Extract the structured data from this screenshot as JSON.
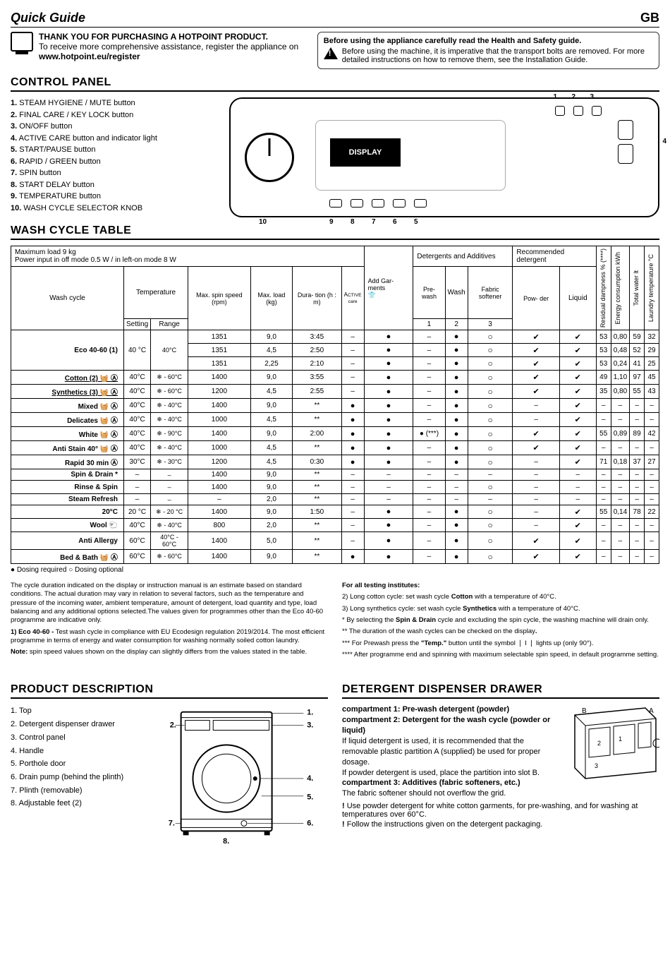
{
  "header": {
    "title": "Quick Guide",
    "locale": "GB"
  },
  "thank": {
    "title": "THANK YOU FOR PURCHASING A HOTPOINT PRODUCT.",
    "text": "To receive more comprehensive assistance, register the appliance on",
    "url": "www.hotpoint.eu/register"
  },
  "warning": {
    "title": "Before using the appliance carefully read the Health and Safety guide.",
    "body": "Before using the machine, it is imperative that the transport bolts are removed. For more detailed instructions on how to remove them, see the Installation Guide."
  },
  "controlPanel": {
    "heading": "CONTROL PANEL",
    "items": [
      "STEAM HYGIENE / MUTE button",
      "FINAL CARE / KEY LOCK button",
      "ON/OFF button",
      "ACTIVE CARE button and indicator light",
      "START/PAUSE button",
      "RAPID / GREEN button",
      "SPIN button",
      "START DELAY button",
      "TEMPERATURE button",
      "WASH CYCLE SELECTOR KNOB"
    ],
    "displayLabel": "DISPLAY"
  },
  "washTable": {
    "heading": "WASH CYCLE TABLE",
    "metaLine1": "Maximum load 9 kg",
    "metaLine2": "Power input in off mode 0.5 W / in left-on mode 8 W",
    "headers": {
      "washCycle": "Wash cycle",
      "temperature": "Temperature",
      "tempSetting": "Setting",
      "tempRange": "Range",
      "maxSpin": "Max. spin speed (rpm)",
      "maxLoad": "Max. load (kg)",
      "duration": "Dura-\ntion (h : m)",
      "active": "Active",
      "addGarments": "Add Gar-\nments",
      "detergentsAdditives": "Detergents and Additives",
      "prewash": "Pre-\nwash",
      "wash": "Wash",
      "fabricSoftener": "Fabric softener",
      "recommendedDetergent": "Recommended detergent",
      "powder": "Pow-\nder",
      "liquid": "Liquid",
      "one": "1",
      "two": "2",
      "three": "3",
      "residualDampness": "Residual dampness % (****)",
      "energyConsumption": "Energy consumption kWh",
      "totalWater": "Total water lt",
      "laundryTemp": "Laundry temperature  °C"
    },
    "rows": [
      {
        "cycle": "Eco 40-60 (1)",
        "t": "40 °C",
        "r": "40°C",
        "rpm": "1351",
        "load": "9,0",
        "dur": "3:45",
        "ac": "–",
        "ag": "f",
        "pw": "–",
        "w": "f",
        "fs": "o",
        "pd": "c",
        "lq": "c",
        "rd": "53",
        "ec": "0,80",
        "tw": "59",
        "lt": "32",
        "rowspan": 3,
        "sub": [
          {
            "rpm": "1351",
            "load": "4,5",
            "dur": "2:50",
            "ac": "–",
            "ag": "f",
            "pw": "–",
            "w": "f",
            "fs": "o",
            "pd": "c",
            "lq": "c",
            "rd": "53",
            "ec": "0,48",
            "tw": "52",
            "lt": "29"
          },
          {
            "rpm": "1351",
            "load": "2,25",
            "dur": "2:10",
            "ac": "–",
            "ag": "f",
            "pw": "–",
            "w": "f",
            "fs": "o",
            "pd": "c",
            "lq": "c",
            "rd": "53",
            "ec": "0,24",
            "tw": "41",
            "lt": "25"
          }
        ]
      },
      {
        "cycle": "Cotton (2)",
        "icons": "wash",
        "t": "40°C",
        "r": "❄ - 60°C",
        "rpm": "1400",
        "load": "9,0",
        "dur": "3:55",
        "ac": "–",
        "ag": "f",
        "pw": "–",
        "w": "f",
        "fs": "o",
        "pd": "c",
        "lq": "c",
        "rd": "49",
        "ec": "1,10",
        "tw": "97",
        "lt": "45",
        "underline": true
      },
      {
        "cycle": "Synthetics (3)",
        "icons": "wash",
        "t": "40°C",
        "r": "❄ - 60°C",
        "rpm": "1200",
        "load": "4,5",
        "dur": "2:55",
        "ac": "–",
        "ag": "f",
        "pw": "–",
        "w": "f",
        "fs": "o",
        "pd": "c",
        "lq": "c",
        "rd": "35",
        "ec": "0,80",
        "tw": "55",
        "lt": "43",
        "underline": true
      },
      {
        "cycle": "Mixed",
        "icons": "wash a",
        "t": "40°C",
        "r": "❄ - 40°C",
        "rpm": "1400",
        "load": "9,0",
        "dur": "**",
        "ac": "f",
        "ag": "f",
        "pw": "–",
        "w": "f",
        "fs": "o",
        "pd": "–",
        "lq": "c",
        "rd": "–",
        "ec": "–",
        "tw": "–",
        "lt": "–"
      },
      {
        "cycle": "Delicates",
        "icons": "wash a",
        "t": "40°C",
        "r": "❄ - 40°C",
        "rpm": "1000",
        "load": "4,5",
        "dur": "**",
        "ac": "f",
        "ag": "f",
        "pw": "–",
        "w": "f",
        "fs": "o",
        "pd": "–",
        "lq": "c",
        "rd": "–",
        "ec": "–",
        "tw": "–",
        "lt": "–"
      },
      {
        "cycle": "White",
        "icons": "wash a",
        "t": "40°C",
        "r": "❄ - 90°C",
        "rpm": "1400",
        "load": "9,0",
        "dur": "2:00",
        "ac": "f",
        "ag": "f",
        "pw": "● (***)",
        "w": "f",
        "fs": "o",
        "pd": "c",
        "lq": "c",
        "rd": "55",
        "ec": "0,89",
        "tw": "89",
        "lt": "42"
      },
      {
        "cycle": "Anti Stain 40°",
        "icons": "wash a",
        "t": "40°C",
        "r": "❄ - 40°C",
        "rpm": "1000",
        "load": "4,5",
        "dur": "**",
        "ac": "f",
        "ag": "f",
        "pw": "–",
        "w": "f",
        "fs": "o",
        "pd": "c",
        "lq": "c",
        "rd": "–",
        "ec": "–",
        "tw": "–",
        "lt": "–"
      },
      {
        "cycle": "Rapid 30 min",
        "icons": "a",
        "t": "30°C",
        "r": "❄ - 30°C",
        "rpm": "1200",
        "load": "4,5",
        "dur": "0:30",
        "ac": "f",
        "ag": "f",
        "pw": "–",
        "w": "f",
        "fs": "o",
        "pd": "–",
        "lq": "c",
        "rd": "71",
        "ec": "0,18",
        "tw": "37",
        "lt": "27"
      },
      {
        "cycle": "Spin & Drain *",
        "t": "–",
        "r": "–",
        "rpm": "1400",
        "load": "9,0",
        "dur": "**",
        "ac": "–",
        "ag": "–",
        "pw": "–",
        "w": "–",
        "fs": "–",
        "pd": "–",
        "lq": "–",
        "rd": "–",
        "ec": "–",
        "tw": "–",
        "lt": "–"
      },
      {
        "cycle": "Rinse & Spin",
        "t": "–",
        "r": "–",
        "rpm": "1400",
        "load": "9,0",
        "dur": "**",
        "ac": "–",
        "ag": "–",
        "pw": "–",
        "w": "–",
        "fs": "o",
        "pd": "–",
        "lq": "–",
        "rd": "–",
        "ec": "–",
        "tw": "–",
        "lt": "–"
      },
      {
        "cycle": "Steam Refresh",
        "t": "–",
        "r": "–",
        "rpm": "–",
        "load": "2,0",
        "dur": "**",
        "ac": "–",
        "ag": "–",
        "pw": "–",
        "w": "–",
        "fs": "–",
        "pd": "–",
        "lq": "–",
        "rd": "–",
        "ec": "–",
        "tw": "–",
        "lt": "–"
      },
      {
        "cycle": "20°C",
        "t": "20 °C",
        "r": "❄ - 20 °C",
        "rpm": "1400",
        "load": "9,0",
        "dur": "1:50",
        "ac": "–",
        "ag": "f",
        "pw": "–",
        "w": "f",
        "fs": "o",
        "pd": "–",
        "lq": "c",
        "rd": "55",
        "ec": "0,14",
        "tw": "78",
        "lt": "22"
      },
      {
        "cycle": "Wool",
        "icons": "wool",
        "t": "40°C",
        "r": "❄ - 40°C",
        "rpm": "800",
        "load": "2,0",
        "dur": "**",
        "ac": "–",
        "ag": "f",
        "pw": "–",
        "w": "f",
        "fs": "o",
        "pd": "–",
        "lq": "c",
        "rd": "–",
        "ec": "–",
        "tw": "–",
        "lt": "–"
      },
      {
        "cycle": "Anti Allergy",
        "t": "60°C",
        "r": "40°C - 60°C",
        "rpm": "1400",
        "load": "5,0",
        "dur": "**",
        "ac": "–",
        "ag": "f",
        "pw": "–",
        "w": "f",
        "fs": "o",
        "pd": "c",
        "lq": "c",
        "rd": "–",
        "ec": "–",
        "tw": "–",
        "lt": "–"
      },
      {
        "cycle": "Bed & Bath",
        "icons": "wash a",
        "t": "60°C",
        "r": "❄ - 60°C",
        "rpm": "1400",
        "load": "9,0",
        "dur": "**",
        "ac": "f",
        "ag": "f",
        "pw": "–",
        "w": "f",
        "fs": "o",
        "pd": "c",
        "lq": "c",
        "rd": "–",
        "ec": "–",
        "tw": "–",
        "lt": "–"
      }
    ],
    "legend": "● Dosing required   ○ Dosing optional"
  },
  "notes": {
    "left": [
      "The cycle duration indicated on the display or instruction manual is an estimate based on standard conditions. The actual duration may vary in relation to several factors, such as the temperature and pressure of the incoming water, ambient temperature, amount of detergent, load quantity and type, load balancing and any additional options selected.The values given for programmes other than the Eco 40-60 programme are indicative only.",
      "<b>1) Eco 40-60 -</b> Test wash cycle in compliance with EU Ecodesign regulation 2019/2014. The most efficient programme in terms of energy and water consumption for washing normally soiled cotton laundry.",
      "<b>Note:</b> spin speed values shown on the display can slightly differs from the values stated in the table."
    ],
    "right": [
      "<b>For all testing institutes:</b>",
      "2)  Long cotton cycle: set wash cycle <b>Cotton</b> with a temperature of 40°C.",
      "3)  Long synthetics cycle: set wash cycle <b>Synthetics</b> with a temperature of 40°C.",
      "* By selecting the <b>Spin & Drain</b> cycle and excluding the spin cycle, the washing machine will drain only.",
      "** The duration of the wash cycles can be checked on the display<b>.</b>",
      "*** For Prewash press the <b>\"Temp.\"</b> button until the symbol ❘ I ❘ lights up (only 90°).",
      "**** After programme end and spinning with maximum selectable spin speed, in default programme setting."
    ]
  },
  "productDesc": {
    "heading": "PRODUCT DESCRIPTION",
    "items": [
      "1. Top",
      "2. Detergent dispenser drawer",
      "3. Control panel",
      "4. Handle",
      "5. Porthole door",
      "6. Drain pump (behind the plinth)",
      "7. Plinth (removable)",
      "8. Adjustable feet (2)"
    ],
    "labels": {
      "l1": "1.",
      "l2": "2.",
      "l3": "3.",
      "l4": "4.",
      "l5": "5.",
      "l6": "6.",
      "l7": "7.",
      "l8": "8."
    }
  },
  "drawer": {
    "heading": "DETERGENT DISPENSER DRAWER",
    "c1": "compartment 1: Pre-wash detergent (powder)",
    "c2": "compartment 2: Detergent for the wash cycle (powder or liquid)",
    "c2body": "If liquid detergent is used, it is recommended that the removable plastic partition A (supplied) be used for proper dosage.",
    "c2body2": "If powder detergent is used, place the partition into slot B.",
    "c3": "compartment 3: Additives (fabric softeners, etc.)",
    "c3body": "The fabric softener should not overflow the grid.",
    "warn1": "Use powder detergent for white cotton garments, for pre-washing, and for washing at temperatures over 60°C.",
    "warn2": "Follow the instructions given on the detergent packaging.",
    "labelA": "A",
    "labelB": "B",
    "label1": "1",
    "label2": "2",
    "label3": "3"
  }
}
